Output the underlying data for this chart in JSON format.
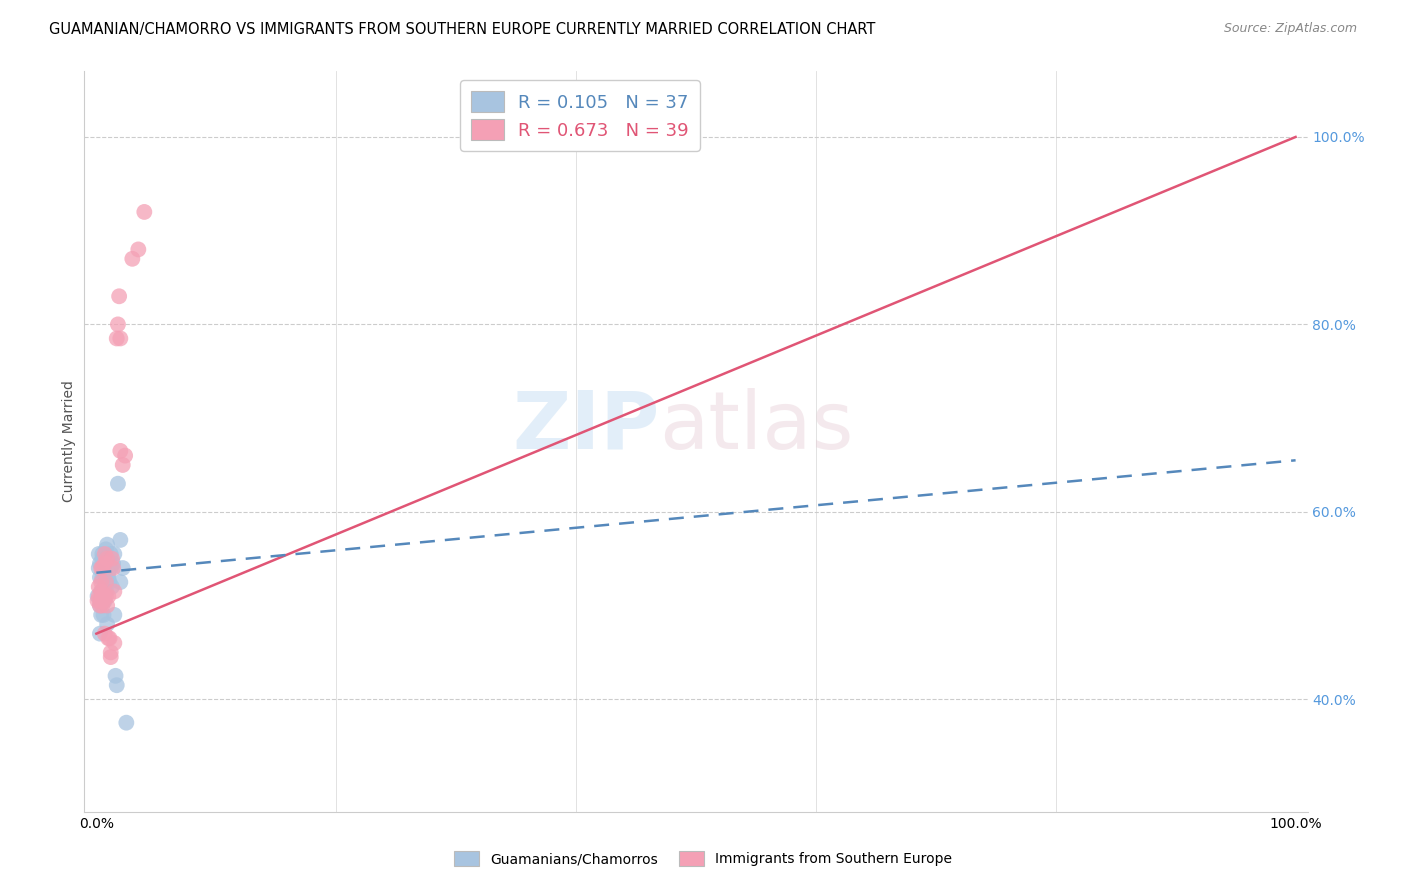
{
  "title": "GUAMANIAN/CHAMORRO VS IMMIGRANTS FROM SOUTHERN EUROPE CURRENTLY MARRIED CORRELATION CHART",
  "source": "Source: ZipAtlas.com",
  "ylabel": "Currently Married",
  "R_blue": 0.105,
  "N_blue": 37,
  "R_pink": 0.673,
  "N_pink": 39,
  "legend_label_blue": "Guamanians/Chamorros",
  "legend_label_pink": "Immigrants from Southern Europe",
  "blue_color": "#a8c4e0",
  "pink_color": "#f4a0b5",
  "blue_line_color": "#5588bb",
  "pink_line_color": "#e05575",
  "right_axis_color": "#5599dd",
  "blue_points": [
    [
      0.1,
      51.0
    ],
    [
      0.2,
      54.0
    ],
    [
      0.2,
      55.5
    ],
    [
      0.3,
      50.0
    ],
    [
      0.3,
      54.5
    ],
    [
      0.3,
      53.0
    ],
    [
      0.4,
      51.5
    ],
    [
      0.4,
      50.5
    ],
    [
      0.4,
      49.0
    ],
    [
      0.5,
      53.0
    ],
    [
      0.5,
      55.0
    ],
    [
      0.5,
      55.5
    ],
    [
      0.6,
      53.5
    ],
    [
      0.6,
      49.0
    ],
    [
      0.7,
      50.5
    ],
    [
      0.7,
      54.5
    ],
    [
      0.8,
      51.5
    ],
    [
      0.8,
      56.0
    ],
    [
      0.9,
      56.5
    ],
    [
      0.9,
      48.0
    ],
    [
      1.0,
      53.5
    ],
    [
      1.0,
      53.0
    ],
    [
      1.1,
      52.5
    ],
    [
      1.2,
      55.5
    ],
    [
      1.2,
      54.0
    ],
    [
      1.3,
      52.0
    ],
    [
      1.4,
      54.5
    ],
    [
      1.5,
      55.5
    ],
    [
      1.5,
      49.0
    ],
    [
      1.6,
      42.5
    ],
    [
      1.7,
      41.5
    ],
    [
      1.8,
      63.0
    ],
    [
      2.0,
      57.0
    ],
    [
      2.0,
      52.5
    ],
    [
      2.2,
      54.0
    ],
    [
      2.5,
      37.5
    ],
    [
      0.3,
      47.0
    ]
  ],
  "pink_points": [
    [
      0.1,
      50.5
    ],
    [
      0.2,
      52.0
    ],
    [
      0.2,
      51.0
    ],
    [
      0.3,
      50.0
    ],
    [
      0.3,
      50.5
    ],
    [
      0.4,
      54.0
    ],
    [
      0.4,
      51.5
    ],
    [
      0.4,
      52.5
    ],
    [
      0.5,
      50.0
    ],
    [
      0.5,
      51.0
    ],
    [
      0.5,
      54.0
    ],
    [
      0.6,
      50.5
    ],
    [
      0.6,
      51.0
    ],
    [
      0.7,
      54.5
    ],
    [
      0.7,
      55.5
    ],
    [
      0.7,
      47.0
    ],
    [
      0.8,
      52.5
    ],
    [
      0.8,
      51.0
    ],
    [
      0.9,
      55.0
    ],
    [
      0.9,
      50.0
    ],
    [
      1.0,
      51.0
    ],
    [
      1.0,
      46.5
    ],
    [
      1.1,
      46.5
    ],
    [
      1.2,
      45.0
    ],
    [
      1.2,
      44.5
    ],
    [
      1.3,
      55.0
    ],
    [
      1.4,
      54.0
    ],
    [
      1.5,
      51.5
    ],
    [
      1.5,
      46.0
    ],
    [
      1.7,
      78.5
    ],
    [
      1.8,
      80.0
    ],
    [
      1.9,
      83.0
    ],
    [
      2.0,
      78.5
    ],
    [
      2.0,
      66.5
    ],
    [
      2.2,
      65.0
    ],
    [
      2.4,
      66.0
    ],
    [
      3.0,
      87.0
    ],
    [
      3.5,
      88.0
    ],
    [
      4.0,
      92.0
    ]
  ],
  "xlim_max": 100.0,
  "ylim_min": 28.0,
  "ylim_max": 107.0,
  "pink_line_intercept": 47.0,
  "pink_line_slope": 0.53,
  "blue_line_intercept": 53.5,
  "blue_line_slope": 0.12
}
